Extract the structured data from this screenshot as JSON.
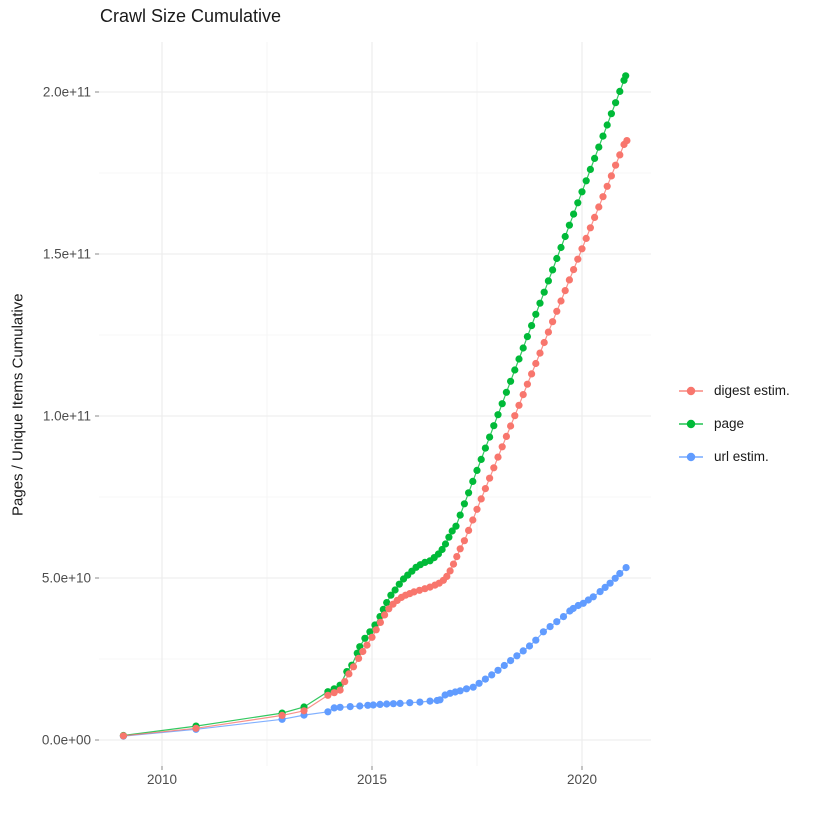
{
  "title": "Crawl Size Cumulative",
  "y_axis": {
    "label": "Pages / Unique Items Cumulative",
    "tick_labels": [
      "0.0e+00",
      "5.0e+10",
      "1.0e+11",
      "1.5e+11",
      "2.0e+11"
    ],
    "tick_values_billions": [
      0,
      50,
      100,
      150,
      200
    ],
    "minor_values_billions": [
      25,
      75,
      125,
      175
    ]
  },
  "x_axis": {
    "tick_labels": [
      "2010",
      "2015",
      "2020"
    ],
    "tick_values": [
      2010,
      2015,
      2020
    ],
    "minor_values": [
      2012.5,
      2017.5
    ]
  },
  "legend": {
    "items": [
      {
        "label": "digest estim.",
        "color": "#F8766D"
      },
      {
        "label": "page",
        "color": "#00BA38"
      },
      {
        "label": "url estim.",
        "color": "#619CFF"
      }
    ]
  },
  "colors": {
    "digest": "#F8766D",
    "page": "#00BA38",
    "url": "#619CFF",
    "grid_major": "#EBEBEB",
    "grid_minor": "#F4F4F4",
    "tick_text": "#4D4D4D",
    "tick_mark": "#8A8A8A"
  },
  "chart_data": {
    "type": "line",
    "title": "Crawl Size Cumulative",
    "xlabel": "",
    "ylabel": "Pages / Unique Items Cumulative",
    "x_unit": "year (decimal)",
    "y_unit": "items, billions (1e9); axis shown 0.0e+00 to 2.0e+11",
    "xlim": [
      2008.5,
      2021.65
    ],
    "ylim_billions": [
      -9,
      215
    ],
    "grid": true,
    "legend_position": "right",
    "series": [
      {
        "name": "url estim.",
        "color": "#619CFF",
        "points": [
          [
            2009.08,
            1.2
          ],
          [
            2010.81,
            3.3
          ],
          [
            2012.86,
            6.4
          ],
          [
            2013.38,
            7.7
          ],
          [
            2013.95,
            8.7
          ],
          [
            2014.1,
            9.9
          ],
          [
            2014.24,
            10.1
          ],
          [
            2014.48,
            10.3
          ],
          [
            2014.71,
            10.5
          ],
          [
            2014.9,
            10.7
          ],
          [
            2015.03,
            10.8
          ],
          [
            2015.19,
            11.0
          ],
          [
            2015.35,
            11.1
          ],
          [
            2015.51,
            11.2
          ],
          [
            2015.67,
            11.3
          ],
          [
            2015.9,
            11.5
          ],
          [
            2016.14,
            11.7
          ],
          [
            2016.38,
            12.0
          ],
          [
            2016.55,
            12.2
          ],
          [
            2016.62,
            12.4
          ],
          [
            2016.74,
            13.9
          ],
          [
            2016.86,
            14.4
          ],
          [
            2016.98,
            14.8
          ],
          [
            2017.1,
            15.2
          ],
          [
            2017.25,
            15.8
          ],
          [
            2017.41,
            16.3
          ],
          [
            2017.55,
            17.5
          ],
          [
            2017.7,
            18.8
          ],
          [
            2017.85,
            20.1
          ],
          [
            2018.0,
            21.5
          ],
          [
            2018.15,
            23.0
          ],
          [
            2018.3,
            24.5
          ],
          [
            2018.45,
            26.0
          ],
          [
            2018.6,
            27.5
          ],
          [
            2018.75,
            29.0
          ],
          [
            2018.9,
            30.8
          ],
          [
            2019.08,
            33.4
          ],
          [
            2019.24,
            35.0
          ],
          [
            2019.4,
            36.5
          ],
          [
            2019.56,
            38.1
          ],
          [
            2019.71,
            39.8
          ],
          [
            2019.79,
            40.6
          ],
          [
            2019.91,
            41.5
          ],
          [
            2020.03,
            42.2
          ],
          [
            2020.15,
            43.2
          ],
          [
            2020.27,
            44.2
          ],
          [
            2020.43,
            45.8
          ],
          [
            2020.55,
            47.1
          ],
          [
            2020.67,
            48.4
          ],
          [
            2020.79,
            49.9
          ],
          [
            2020.9,
            51.4
          ],
          [
            2021.05,
            53.2
          ]
        ]
      },
      {
        "name": "page",
        "color": "#00BA38",
        "points": [
          [
            2009.08,
            1.4
          ],
          [
            2010.81,
            4.3
          ],
          [
            2012.86,
            8.3
          ],
          [
            2013.38,
            10.2
          ],
          [
            2013.95,
            14.9
          ],
          [
            2014.1,
            15.8
          ],
          [
            2014.24,
            16.9
          ],
          [
            2014.4,
            21.1
          ],
          [
            2014.52,
            23.1
          ],
          [
            2014.65,
            26.8
          ],
          [
            2014.71,
            28.8
          ],
          [
            2014.83,
            31.4
          ],
          [
            2014.95,
            33.4
          ],
          [
            2015.07,
            35.5
          ],
          [
            2015.19,
            38.1
          ],
          [
            2015.27,
            40.3
          ],
          [
            2015.35,
            42.4
          ],
          [
            2015.45,
            44.7
          ],
          [
            2015.55,
            46.3
          ],
          [
            2015.65,
            48.1
          ],
          [
            2015.75,
            49.7
          ],
          [
            2015.85,
            50.9
          ],
          [
            2015.95,
            52.1
          ],
          [
            2016.05,
            53.3
          ],
          [
            2016.15,
            54.1
          ],
          [
            2016.26,
            54.8
          ],
          [
            2016.38,
            55.3
          ],
          [
            2016.48,
            56.3
          ],
          [
            2016.58,
            57.4
          ],
          [
            2016.67,
            58.8
          ],
          [
            2016.75,
            60.5
          ],
          [
            2016.83,
            62.6
          ],
          [
            2016.91,
            64.5
          ],
          [
            2017.0,
            66.0
          ],
          [
            2017.1,
            69.4
          ],
          [
            2017.2,
            72.9
          ],
          [
            2017.3,
            76.3
          ],
          [
            2017.4,
            79.8
          ],
          [
            2017.5,
            83.2
          ],
          [
            2017.6,
            86.6
          ],
          [
            2017.7,
            90.1
          ],
          [
            2017.8,
            93.5
          ],
          [
            2017.9,
            97.0
          ],
          [
            2018.0,
            100.4
          ],
          [
            2018.1,
            103.8
          ],
          [
            2018.2,
            107.3
          ],
          [
            2018.3,
            110.7
          ],
          [
            2018.4,
            114.2
          ],
          [
            2018.5,
            117.6
          ],
          [
            2018.6,
            121.0
          ],
          [
            2018.7,
            124.5
          ],
          [
            2018.8,
            127.9
          ],
          [
            2018.9,
            131.4
          ],
          [
            2019.0,
            134.8
          ],
          [
            2019.1,
            138.2
          ],
          [
            2019.2,
            141.7
          ],
          [
            2019.3,
            145.1
          ],
          [
            2019.4,
            148.6
          ],
          [
            2019.5,
            152.0
          ],
          [
            2019.6,
            155.4
          ],
          [
            2019.7,
            158.9
          ],
          [
            2019.8,
            162.3
          ],
          [
            2019.9,
            165.8
          ],
          [
            2020.0,
            169.2
          ],
          [
            2020.1,
            172.6
          ],
          [
            2020.2,
            176.1
          ],
          [
            2020.3,
            179.5
          ],
          [
            2020.4,
            183.0
          ],
          [
            2020.5,
            186.4
          ],
          [
            2020.6,
            189.8
          ],
          [
            2020.7,
            193.3
          ],
          [
            2020.8,
            196.7
          ],
          [
            2020.9,
            200.2
          ],
          [
            2021.0,
            203.6
          ],
          [
            2021.04,
            205.0
          ]
        ]
      },
      {
        "name": "digest estim.",
        "color": "#F8766D",
        "points": [
          [
            2009.08,
            1.3
          ],
          [
            2010.81,
            3.6
          ],
          [
            2012.86,
            7.6
          ],
          [
            2013.38,
            9.0
          ],
          [
            2013.95,
            13.8
          ],
          [
            2014.1,
            14.6
          ],
          [
            2014.24,
            15.4
          ],
          [
            2014.35,
            18.0
          ],
          [
            2014.45,
            20.4
          ],
          [
            2014.56,
            22.6
          ],
          [
            2014.68,
            25.2
          ],
          [
            2014.78,
            27.3
          ],
          [
            2014.88,
            29.3
          ],
          [
            2015.0,
            31.7
          ],
          [
            2015.1,
            34.0
          ],
          [
            2015.2,
            36.3
          ],
          [
            2015.3,
            38.6
          ],
          [
            2015.4,
            40.5
          ],
          [
            2015.5,
            41.9
          ],
          [
            2015.6,
            43.1
          ],
          [
            2015.7,
            44.0
          ],
          [
            2015.8,
            44.7
          ],
          [
            2015.9,
            45.2
          ],
          [
            2016.0,
            45.7
          ],
          [
            2016.13,
            46.2
          ],
          [
            2016.26,
            46.7
          ],
          [
            2016.38,
            47.2
          ],
          [
            2016.5,
            47.8
          ],
          [
            2016.6,
            48.4
          ],
          [
            2016.7,
            49.3
          ],
          [
            2016.78,
            50.5
          ],
          [
            2016.86,
            52.2
          ],
          [
            2016.94,
            54.3
          ],
          [
            2017.02,
            56.6
          ],
          [
            2017.1,
            59.0
          ],
          [
            2017.2,
            61.5
          ],
          [
            2017.3,
            64.7
          ],
          [
            2017.4,
            67.9
          ],
          [
            2017.5,
            71.2
          ],
          [
            2017.6,
            74.4
          ],
          [
            2017.7,
            77.6
          ],
          [
            2017.8,
            80.8
          ],
          [
            2017.9,
            84.0
          ],
          [
            2018.0,
            87.3
          ],
          [
            2018.1,
            90.5
          ],
          [
            2018.2,
            93.7
          ],
          [
            2018.3,
            96.9
          ],
          [
            2018.4,
            100.1
          ],
          [
            2018.5,
            103.3
          ],
          [
            2018.6,
            106.6
          ],
          [
            2018.7,
            109.8
          ],
          [
            2018.8,
            113.0
          ],
          [
            2018.9,
            116.2
          ],
          [
            2019.0,
            119.4
          ],
          [
            2019.1,
            122.7
          ],
          [
            2019.2,
            125.9
          ],
          [
            2019.3,
            129.1
          ],
          [
            2019.4,
            132.3
          ],
          [
            2019.5,
            135.5
          ],
          [
            2019.6,
            138.7
          ],
          [
            2019.7,
            142.0
          ],
          [
            2019.8,
            145.2
          ],
          [
            2019.9,
            148.4
          ],
          [
            2020.0,
            151.6
          ],
          [
            2020.1,
            154.8
          ],
          [
            2020.2,
            158.1
          ],
          [
            2020.3,
            161.3
          ],
          [
            2020.4,
            164.5
          ],
          [
            2020.5,
            167.7
          ],
          [
            2020.6,
            170.9
          ],
          [
            2020.7,
            174.1
          ],
          [
            2020.8,
            177.4
          ],
          [
            2020.9,
            180.6
          ],
          [
            2021.0,
            183.8
          ],
          [
            2021.07,
            185.0
          ]
        ]
      }
    ]
  }
}
